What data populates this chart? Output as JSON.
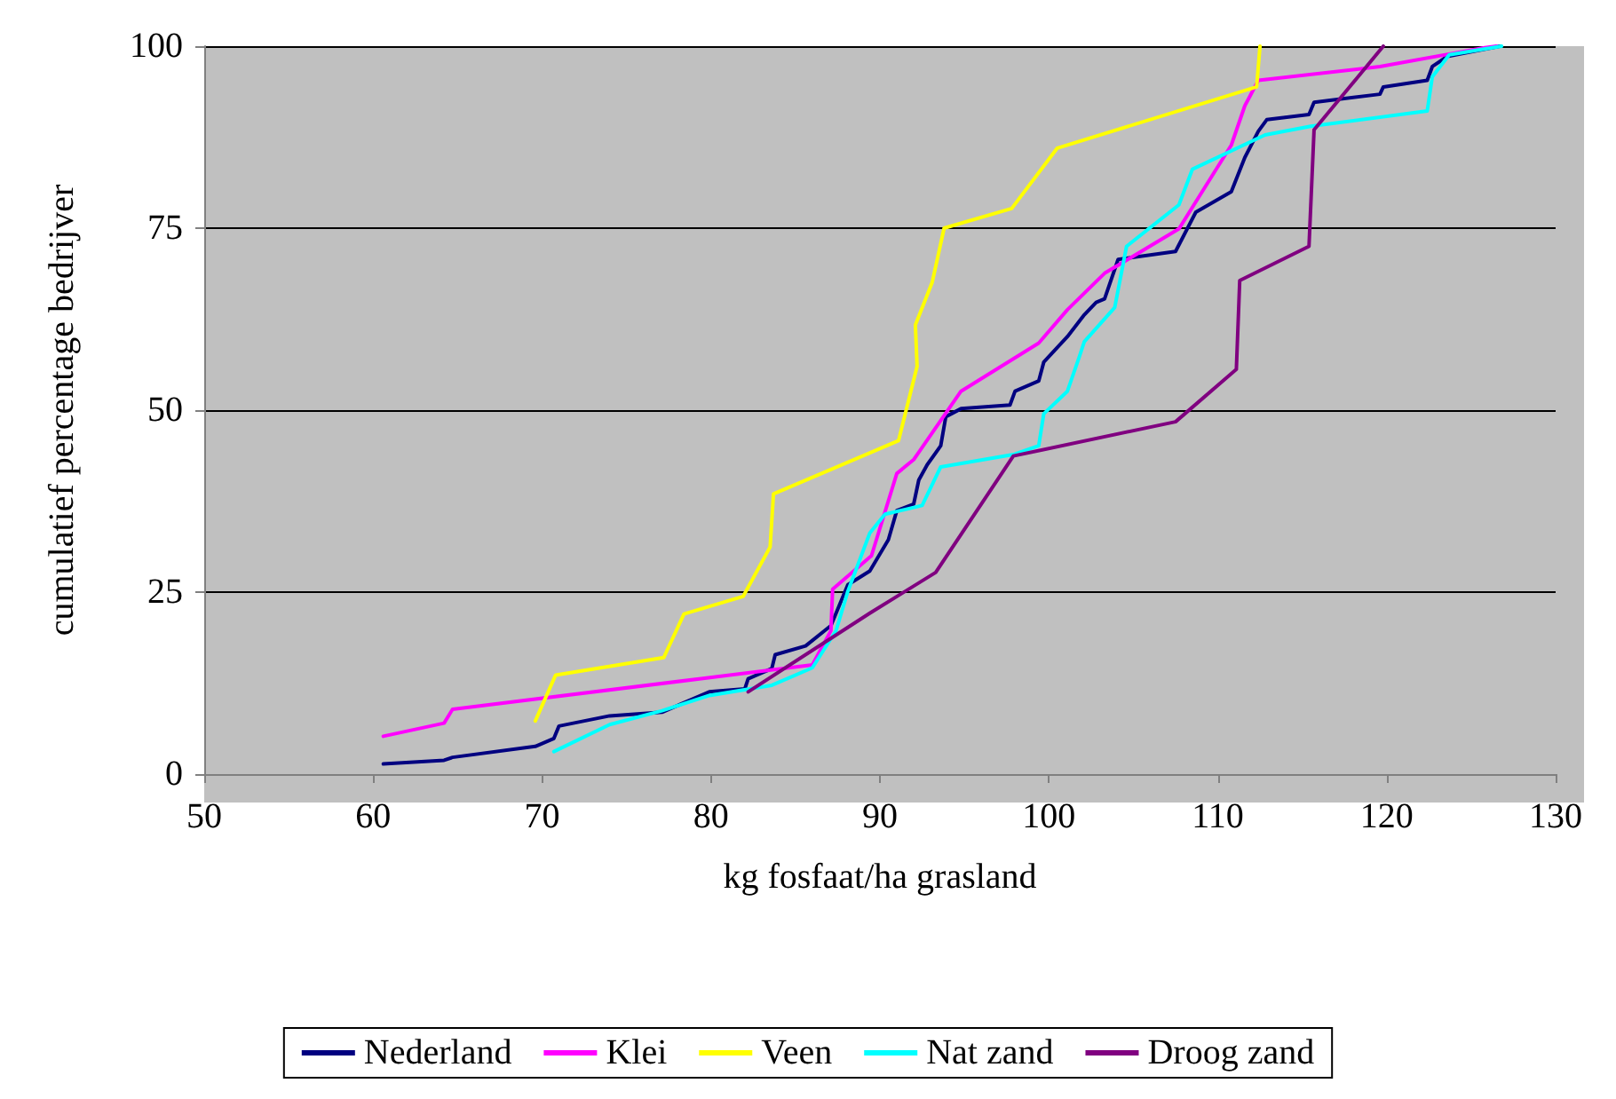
{
  "chart_data": {
    "type": "line",
    "xlabel": "kg fosfaat/ha grasland",
    "ylabel": "cumulatief percentage bedrijver",
    "xlim": [
      50,
      130
    ],
    "xticks": [
      50,
      60,
      70,
      80,
      90,
      100,
      110,
      120,
      130
    ],
    "ylim": [
      0,
      100
    ],
    "yticks": [
      0,
      25,
      50,
      75,
      100
    ],
    "grid": "y",
    "legend": "bottom",
    "marker": "none",
    "line_style": "solid",
    "series": [
      {
        "name": "Nederland",
        "color": "#000080",
        "x": [
          60.6,
          64.2,
          64.7,
          69.6,
          70.7,
          71.0,
          74.0,
          77.1,
          79.9,
          82.0,
          82.2,
          83.6,
          83.8,
          85.6,
          87.1,
          88.1,
          89.4,
          90.5,
          91.0,
          92.0,
          92.3,
          92.8,
          93.6,
          93.9,
          94.8,
          97.7,
          98.0,
          99.4,
          99.7,
          101.1,
          102.1,
          102.8,
          103.3,
          104.1,
          107.5,
          108.7,
          110.8,
          111.6,
          112.4,
          112.9,
          115.4,
          115.7,
          119.6,
          119.8,
          122.4,
          122.7,
          123.6,
          126.7
        ],
        "values": [
          1.4,
          1.9,
          2.3,
          3.8,
          4.9,
          6.6,
          8.0,
          8.5,
          11.3,
          11.7,
          13.1,
          14.5,
          16.4,
          17.6,
          20.4,
          26.0,
          27.9,
          32.2,
          36.2,
          37.1,
          40.4,
          42.5,
          45.1,
          49.1,
          50.2,
          50.7,
          52.6,
          54.0,
          56.6,
          60.1,
          63.1,
          64.8,
          65.3,
          70.7,
          71.8,
          77.2,
          80.0,
          84.7,
          88.3,
          89.9,
          90.6,
          92.3,
          93.4,
          94.4,
          95.3,
          97.2,
          98.6,
          100
        ]
      },
      {
        "name": "Klei",
        "color": "#ff00ff",
        "x": [
          60.6,
          64.2,
          64.7,
          86.0,
          87.1,
          87.2,
          89.5,
          91.0,
          92.0,
          94.8,
          99.4,
          101.1,
          103.3,
          107.7,
          110.8,
          111.6,
          112.4,
          119.6,
          125.8,
          126.5
        ],
        "values": [
          5.2,
          7.0,
          8.9,
          15.0,
          19.7,
          25.4,
          30.0,
          41.3,
          43.2,
          52.6,
          59.2,
          63.8,
          68.8,
          74.9,
          86.4,
          91.8,
          95.3,
          97.2,
          99.8,
          100
        ]
      },
      {
        "name": "Veen",
        "color": "#ffff00",
        "x": [
          69.6,
          70.8,
          77.2,
          78.4,
          81.9,
          83.5,
          83.7,
          91.1,
          92.2,
          92.1,
          93.1,
          93.8,
          97.8,
          100.5,
          112.3,
          112.5
        ],
        "values": [
          7.3,
          13.6,
          16.0,
          22.0,
          24.4,
          31.2,
          38.5,
          45.8,
          56.0,
          61.7,
          67.6,
          75.0,
          77.7,
          86.0,
          94.4,
          100
        ]
      },
      {
        "name": "Nat zand",
        "color": "#00ffff",
        "x": [
          70.7,
          74.0,
          77.1,
          79.9,
          83.6,
          86.0,
          87.4,
          88.1,
          89.4,
          90.3,
          92.5,
          93.6,
          97.9,
          99.4,
          99.7,
          101.1,
          101.8,
          102.1,
          103.9,
          104.6,
          107.7,
          108.5,
          112.8,
          115.5,
          122.4,
          122.7,
          123.7,
          126.8
        ],
        "values": [
          3.1,
          6.8,
          8.7,
          10.8,
          12.2,
          14.6,
          19.7,
          25.1,
          33.1,
          35.7,
          36.9,
          42.2,
          43.9,
          45.1,
          49.5,
          52.6,
          57.3,
          59.4,
          64.1,
          72.5,
          78.2,
          83.1,
          87.8,
          89.0,
          91.1,
          95.8,
          98.8,
          100
        ]
      },
      {
        "name": "Droog zand",
        "color": "#800080",
        "x": [
          82.2,
          89.4,
          93.3,
          97.9,
          107.5,
          111.1,
          111.3,
          115.4,
          115.7,
          119.8
        ],
        "values": [
          11.3,
          22.1,
          27.7,
          43.7,
          48.4,
          55.6,
          67.8,
          72.5,
          88.5,
          100
        ]
      }
    ]
  }
}
